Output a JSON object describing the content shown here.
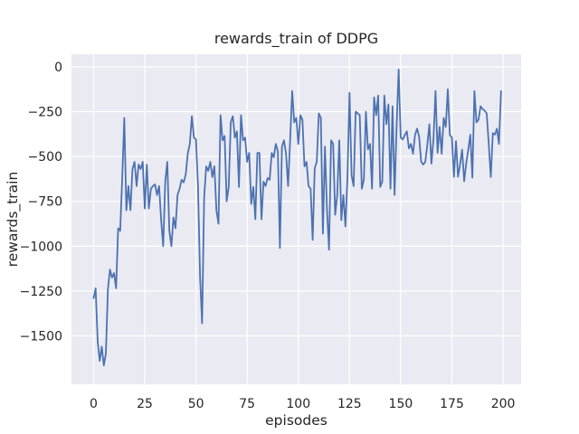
{
  "chart_data": {
    "type": "line",
    "title": "rewards_train of DDPG",
    "xlabel": "episodes",
    "ylabel": "rewards_train",
    "x_ticks": [
      0,
      25,
      50,
      75,
      100,
      125,
      150,
      175,
      200
    ],
    "y_ticks": [
      0,
      -250,
      -500,
      -750,
      -1000,
      -1250,
      -1500
    ],
    "xlim": [
      -10.8,
      208.8
    ],
    "ylim": [
      -1770,
      70
    ],
    "grid": true,
    "legend": null,
    "line_color": "#4c72b0",
    "background_color": "#eaeaf2",
    "grid_color": "#ffffff",
    "x_range": [
      0,
      199
    ],
    "x_step": 1,
    "values": [
      -1290,
      -1235,
      -1530,
      -1640,
      -1560,
      -1665,
      -1600,
      -1240,
      -1130,
      -1175,
      -1150,
      -1235,
      -900,
      -915,
      -615,
      -285,
      -800,
      -665,
      -800,
      -570,
      -530,
      -665,
      -545,
      -570,
      -530,
      -790,
      -545,
      -790,
      -680,
      -665,
      -655,
      -715,
      -665,
      -855,
      -1000,
      -640,
      -530,
      -915,
      -1000,
      -840,
      -900,
      -715,
      -680,
      -630,
      -645,
      -600,
      -485,
      -430,
      -275,
      -395,
      -405,
      -665,
      -1170,
      -1430,
      -730,
      -555,
      -580,
      -530,
      -615,
      -555,
      -800,
      -875,
      -270,
      -410,
      -385,
      -750,
      -670,
      -310,
      -275,
      -395,
      -360,
      -670,
      -270,
      -410,
      -395,
      -530,
      -480,
      -765,
      -670,
      -850,
      -480,
      -480,
      -850,
      -640,
      -665,
      -620,
      -630,
      -480,
      -505,
      -430,
      -470,
      -1010,
      -445,
      -410,
      -485,
      -665,
      -410,
      -135,
      -310,
      -285,
      -430,
      -270,
      -295,
      -555,
      -530,
      -665,
      -680,
      -965,
      -565,
      -530,
      -260,
      -285,
      -930,
      -445,
      -800,
      -1020,
      -410,
      -430,
      -825,
      -715,
      -410,
      -855,
      -715,
      -890,
      -615,
      -145,
      -605,
      -665,
      -250,
      -260,
      -270,
      -680,
      -630,
      -250,
      -460,
      -430,
      -680,
      -170,
      -270,
      -160,
      -670,
      -640,
      -160,
      -320,
      -210,
      -680,
      -220,
      -715,
      -330,
      -15,
      -395,
      -405,
      -380,
      -360,
      -455,
      -430,
      -485,
      -380,
      -345,
      -390,
      -530,
      -545,
      -530,
      -435,
      -320,
      -540,
      -405,
      -135,
      -480,
      -335,
      -485,
      -285,
      -335,
      -125,
      -380,
      -395,
      -613,
      -415,
      -613,
      -546,
      -462,
      -638,
      -538,
      -462,
      -378,
      -618,
      -135,
      -310,
      -295,
      -220,
      -235,
      -245,
      -260,
      -430,
      -615,
      -370,
      -378,
      -345,
      -430,
      -135
    ]
  }
}
